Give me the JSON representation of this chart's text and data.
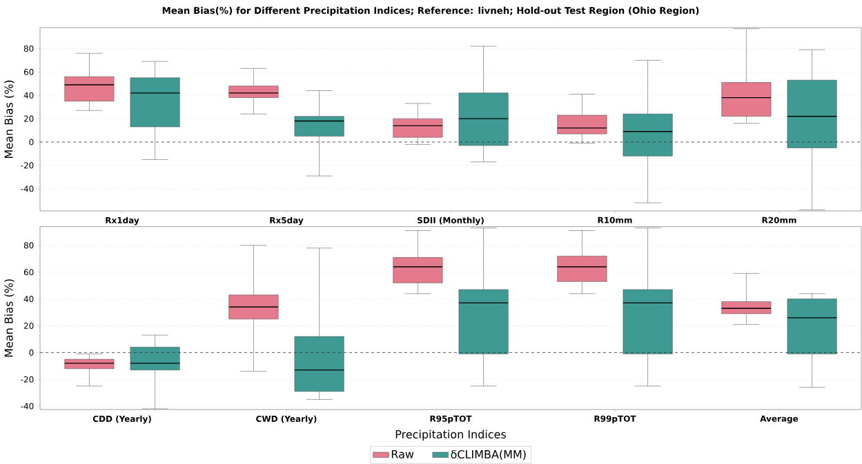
{
  "chart_data": [
    {
      "type": "box",
      "title": "Mean Bias(%) for Different Precipitation Indices; Reference: livneh; Hold-out Test Region (Ohio Region)",
      "ylabel": "Mean Bias (%)",
      "categories": [
        "Rx1day",
        "Rx5day",
        "SDII (Monthly)",
        "R10mm",
        "R20mm"
      ],
      "series": [
        {
          "color": "#e57a8d",
          "boxes": [
            {
              "low": 27,
              "q1": 35,
              "median": 49,
              "q3": 56,
              "high": 76
            },
            {
              "low": 24,
              "q1": 38,
              "median": 42,
              "q3": 48,
              "high": 63
            },
            {
              "low": -2,
              "q1": 4,
              "median": 14,
              "q3": 20,
              "high": 33
            },
            {
              "low": -1,
              "q1": 7,
              "median": 12,
              "q3": 23,
              "high": 41
            },
            {
              "low": 16,
              "q1": 22,
              "median": 38,
              "q3": 51,
              "high": 97
            }
          ]
        },
        {
          "color": "#3e9a92",
          "boxes": [
            {
              "low": -15,
              "q1": 13,
              "median": 42,
              "q3": 55,
              "high": 69
            },
            {
              "low": -29,
              "q1": 5,
              "median": 18,
              "q3": 22,
              "high": 44
            },
            {
              "low": -17,
              "q1": -3,
              "median": 20,
              "q3": 42,
              "high": 82
            },
            {
              "low": -52,
              "q1": -12,
              "median": 9,
              "q3": 24,
              "high": 70
            },
            {
              "low": -58,
              "q1": -5,
              "median": 22,
              "q3": 53,
              "high": 79
            }
          ]
        }
      ],
      "ylim": [
        -59,
        98
      ],
      "yticks": [
        -40,
        -20,
        0,
        20,
        40,
        60,
        80
      ],
      "grid": "y",
      "ref_lines": [
        {
          "axis": "y",
          "value": 0,
          "line_style": "dashed"
        }
      ]
    },
    {
      "type": "box",
      "ylabel": "Mean Bias (%)",
      "xlabel": "Precipitation Indices",
      "categories": [
        "CDD (Yearly)",
        "CWD (Yearly)",
        "R95pTOT",
        "R99pTOT",
        "Average"
      ],
      "series": [
        {
          "name": "Raw",
          "color": "#e57a8d",
          "boxes": [
            {
              "low": -25,
              "q1": -12,
              "median": -8,
              "q3": -5,
              "high": -1
            },
            {
              "low": -14,
              "q1": 25,
              "median": 34,
              "q3": 43,
              "high": 80
            },
            {
              "low": 44,
              "q1": 52,
              "median": 64,
              "q3": 71,
              "high": 91
            },
            {
              "low": 44,
              "q1": 53,
              "median": 64,
              "q3": 72,
              "high": 91
            },
            {
              "low": 21,
              "q1": 29,
              "median": 33,
              "q3": 38,
              "high": 59
            }
          ]
        },
        {
          "name": "δCLIMBA(MM)",
          "color": "#3e9a92",
          "boxes": [
            {
              "low": -42,
              "q1": -13,
              "median": -8,
              "q3": 4,
              "high": 13
            },
            {
              "low": -35,
              "q1": -29,
              "median": -13,
              "q3": 12,
              "high": 78
            },
            {
              "low": -25,
              "q1": -1,
              "median": 37,
              "q3": 47,
              "high": 93
            },
            {
              "low": -25,
              "q1": -1,
              "median": 37,
              "q3": 47,
              "high": 93
            },
            {
              "low": -26,
              "q1": -1,
              "median": 26,
              "q3": 40,
              "high": 44
            }
          ]
        }
      ],
      "ylim": [
        -42.5,
        94
      ],
      "yticks": [
        -40,
        -20,
        0,
        20,
        40,
        60,
        80
      ],
      "grid": "y",
      "ref_lines": [
        {
          "axis": "y",
          "value": 0,
          "line_style": "dashed"
        }
      ],
      "legend": "bottom"
    }
  ]
}
